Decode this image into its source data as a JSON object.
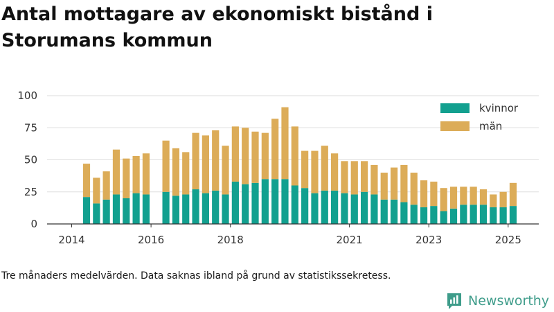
{
  "title": "Antal mottagare av ekonomiskt bistånd i Storumans kommun",
  "caption": "Tre månaders medelvärden. Data saknas ibland på grund av statistikssekretess.",
  "logo_text": "Newsworthy",
  "colors": {
    "kvinnor": "#12a08f",
    "man": "#dcac58",
    "axis": "#333333",
    "grid": "#dddddd",
    "logo": "#3e9c8a"
  },
  "chart_data": {
    "type": "bar",
    "stacked": true,
    "title": "Antal mottagare av ekonomiskt bistånd i Storumans kommun",
    "xlabel": "",
    "ylabel": "",
    "ylim": [
      0,
      100
    ],
    "yticks": [
      0,
      25,
      50,
      75,
      100
    ],
    "xticks": [
      "2014",
      "2016",
      "2018",
      "2021",
      "2023",
      "2025"
    ],
    "legend": {
      "position": "top-right",
      "entries": [
        "kvinnor",
        "män"
      ]
    },
    "grid": true,
    "categories": [
      "2014-Q2",
      "2014-Q3",
      "2014-Q4",
      "2015-Q1",
      "2015-Q2",
      "2015-Q3",
      "2015-Q4",
      "2016-Q2",
      "2016-Q3",
      "2016-Q4",
      "2017-Q1",
      "2017-Q2",
      "2017-Q3",
      "2017-Q4",
      "2018-Q1",
      "2018-Q2",
      "2018-Q3",
      "2018-Q4",
      "2019-Q1",
      "2019-Q2",
      "2019-Q3",
      "2019-Q4",
      "2020-Q1",
      "2020-Q2",
      "2020-Q3",
      "2020-Q4",
      "2021-Q1",
      "2021-Q2",
      "2021-Q3",
      "2021-Q4",
      "2022-Q1",
      "2022-Q2",
      "2022-Q3",
      "2022-Q4",
      "2023-Q1",
      "2023-Q2",
      "2023-Q3",
      "2023-Q4",
      "2024-Q1",
      "2024-Q2",
      "2024-Q3",
      "2024-Q4",
      "2025-Q1"
    ],
    "series": [
      {
        "name": "kvinnor",
        "values": [
          21,
          16,
          19,
          23,
          20,
          24,
          23,
          25,
          22,
          23,
          27,
          24,
          26,
          23,
          33,
          31,
          32,
          35,
          35,
          35,
          30,
          28,
          24,
          26,
          26,
          24,
          23,
          25,
          23,
          19,
          19,
          17,
          15,
          13,
          14,
          10,
          12,
          15,
          15,
          15,
          13,
          13,
          14
        ]
      },
      {
        "name": "män",
        "values": [
          26,
          20,
          22,
          35,
          31,
          29,
          32,
          40,
          37,
          33,
          44,
          45,
          47,
          38,
          43,
          44,
          40,
          36,
          47,
          56,
          46,
          29,
          33,
          35,
          29,
          25,
          26,
          24,
          23,
          21,
          25,
          29,
          25,
          21,
          19,
          18,
          17,
          14,
          14,
          12,
          10,
          12,
          18
        ]
      }
    ]
  }
}
